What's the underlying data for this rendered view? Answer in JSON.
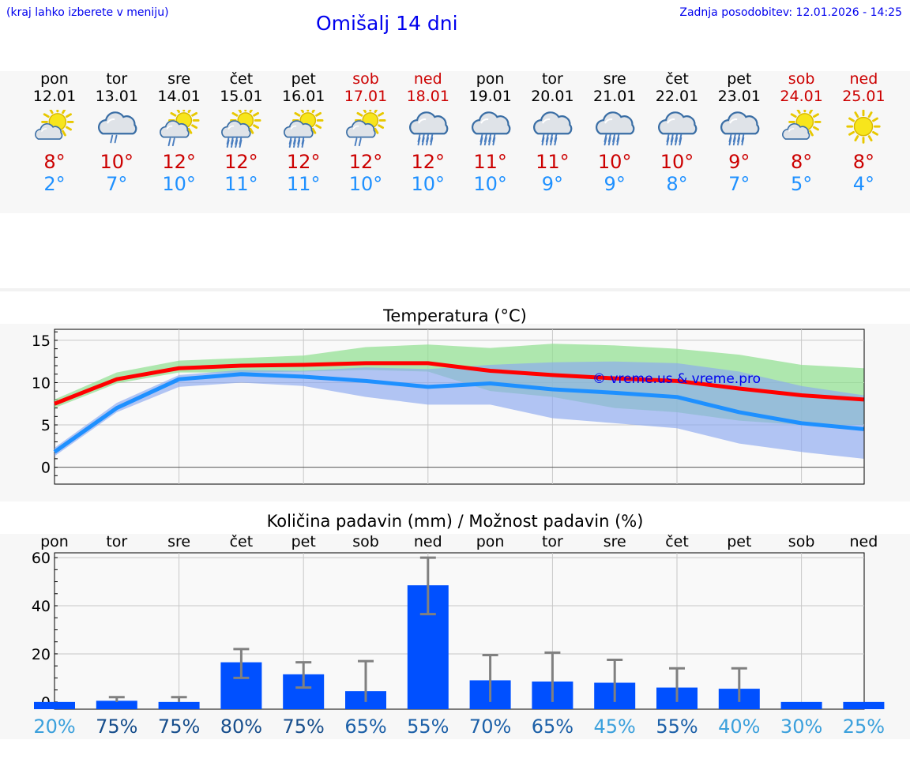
{
  "header": {
    "left_note": "(kraj lahko izberete v meniju)",
    "title": "Omišalj 14 dni",
    "updated": "Zadnja posodobitev: 12.01.2026 - 14:25"
  },
  "colors": {
    "weekday": "#000000",
    "weekend": "#cc0000",
    "tmax": "#cc0000",
    "tmin": "#1e90ff",
    "bar": "#0050ff",
    "watermark": "#0000ee"
  },
  "days": [
    {
      "name": "pon",
      "date": "12.01",
      "weekend": false,
      "icon": "partly-cloudy-sun-icon",
      "tmax": "8°",
      "tmin": "2°"
    },
    {
      "name": "tor",
      "date": "13.01",
      "weekend": false,
      "icon": "cloud-light-rain-icon",
      "tmax": "10°",
      "tmin": "7°"
    },
    {
      "name": "sre",
      "date": "14.01",
      "weekend": false,
      "icon": "sun-cloud-light-rain-icon",
      "tmax": "12°",
      "tmin": "10°"
    },
    {
      "name": "čet",
      "date": "15.01",
      "weekend": false,
      "icon": "sun-cloud-rain-icon",
      "tmax": "12°",
      "tmin": "11°"
    },
    {
      "name": "pet",
      "date": "16.01",
      "weekend": false,
      "icon": "sun-cloud-rain-icon",
      "tmax": "12°",
      "tmin": "11°"
    },
    {
      "name": "sob",
      "date": "17.01",
      "weekend": true,
      "icon": "sun-cloud-light-rain-icon",
      "tmax": "12°",
      "tmin": "10°"
    },
    {
      "name": "ned",
      "date": "18.01",
      "weekend": true,
      "icon": "cloud-rain-icon",
      "tmax": "12°",
      "tmin": "10°"
    },
    {
      "name": "pon",
      "date": "19.01",
      "weekend": false,
      "icon": "cloud-rain-icon",
      "tmax": "11°",
      "tmin": "10°"
    },
    {
      "name": "tor",
      "date": "20.01",
      "weekend": false,
      "icon": "cloud-rain-icon",
      "tmax": "11°",
      "tmin": "9°"
    },
    {
      "name": "sre",
      "date": "21.01",
      "weekend": false,
      "icon": "cloud-rain-icon",
      "tmax": "10°",
      "tmin": "9°"
    },
    {
      "name": "čet",
      "date": "22.01",
      "weekend": false,
      "icon": "cloud-rain-icon",
      "tmax": "10°",
      "tmin": "8°"
    },
    {
      "name": "pet",
      "date": "23.01",
      "weekend": false,
      "icon": "cloud-rain-icon",
      "tmax": "9°",
      "tmin": "7°"
    },
    {
      "name": "sob",
      "date": "24.01",
      "weekend": true,
      "icon": "partly-cloudy-sun-icon",
      "tmax": "8°",
      "tmin": "5°"
    },
    {
      "name": "ned",
      "date": "25.01",
      "weekend": true,
      "icon": "sun-icon",
      "tmax": "8°",
      "tmin": "4°"
    }
  ],
  "chart_data": [
    {
      "type": "line",
      "title": "Temperatura (°C)",
      "x": [
        0,
        1,
        2,
        3,
        4,
        5,
        6,
        7,
        8,
        9,
        10,
        11,
        12,
        13
      ],
      "ylim": [
        -2,
        16.3
      ],
      "yticks": [
        0,
        5,
        10,
        15
      ],
      "watermark": "© vreme.us & vreme.pro",
      "series": [
        {
          "name": "max",
          "color": "#ff0000",
          "values": [
            7.5,
            10.4,
            11.7,
            12.0,
            12.1,
            12.3,
            12.3,
            11.4,
            10.9,
            10.5,
            10.2,
            9.3,
            8.5,
            8.0
          ]
        },
        {
          "name": "min",
          "color": "#1e90ff",
          "values": [
            1.8,
            7.0,
            10.4,
            11.0,
            10.7,
            10.2,
            9.5,
            9.9,
            9.2,
            8.8,
            8.3,
            6.5,
            5.2,
            4.5
          ]
        }
      ],
      "bands": [
        {
          "name": "max-range",
          "color": "#8fdf8f",
          "low": [
            7.0,
            9.9,
            11.2,
            11.2,
            11.3,
            11.5,
            11.3,
            9.0,
            8.3,
            7.0,
            6.5,
            5.5,
            5.0,
            5.0
          ],
          "high": [
            8.0,
            11.2,
            12.6,
            12.9,
            13.2,
            14.2,
            14.5,
            14.1,
            14.6,
            14.4,
            14.0,
            13.3,
            12.1,
            11.7
          ]
        },
        {
          "name": "min-range",
          "color": "#8aa8f0",
          "low": [
            1.3,
            6.5,
            9.5,
            10.0,
            9.6,
            8.3,
            7.4,
            7.4,
            5.8,
            5.2,
            4.6,
            2.8,
            1.8,
            1.0
          ],
          "high": [
            2.3,
            7.6,
            10.9,
            11.5,
            11.4,
            11.8,
            11.6,
            12.1,
            12.4,
            12.5,
            12.3,
            11.3,
            9.6,
            8.5
          ]
        }
      ]
    },
    {
      "type": "bar",
      "title": "Količina padavin (mm) / Možnost padavin (%)",
      "categories": [
        "pon",
        "tor",
        "sre",
        "čet",
        "pet",
        "sob",
        "ned",
        "pon",
        "tor",
        "sre",
        "čet",
        "pet",
        "sob",
        "ned"
      ],
      "ylim": [
        -3,
        62
      ],
      "yticks": [
        0,
        20,
        40,
        60
      ],
      "values": [
        0,
        0.5,
        0,
        16.5,
        11.5,
        4.5,
        48.5,
        9,
        8.5,
        8,
        6,
        5.5,
        0,
        0
      ],
      "err_low": [
        0,
        0,
        0,
        10,
        6,
        0,
        36.5,
        0,
        0,
        0,
        0,
        0,
        0,
        0
      ],
      "err_high": [
        0,
        2,
        2,
        22,
        16.5,
        17,
        60,
        19.5,
        20.5,
        17.5,
        14,
        14,
        0,
        0
      ],
      "probability": [
        {
          "label": "20%",
          "color": "#3ba0dc"
        },
        {
          "label": "75%",
          "color": "#174e8c"
        },
        {
          "label": "75%",
          "color": "#174e8c"
        },
        {
          "label": "80%",
          "color": "#174e8c"
        },
        {
          "label": "75%",
          "color": "#174e8c"
        },
        {
          "label": "65%",
          "color": "#1c60a8"
        },
        {
          "label": "55%",
          "color": "#1c60a8"
        },
        {
          "label": "70%",
          "color": "#1c60a8"
        },
        {
          "label": "65%",
          "color": "#1c60a8"
        },
        {
          "label": "45%",
          "color": "#3ba0dc"
        },
        {
          "label": "55%",
          "color": "#1c60a8"
        },
        {
          "label": "40%",
          "color": "#3ba0dc"
        },
        {
          "label": "30%",
          "color": "#3ba0dc"
        },
        {
          "label": "25%",
          "color": "#3ba0dc"
        }
      ]
    }
  ]
}
